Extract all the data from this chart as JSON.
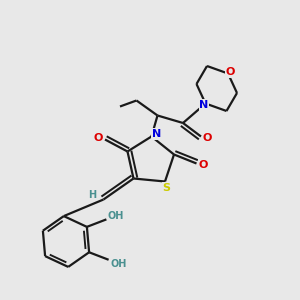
{
  "bg_color": "#e8e8e8",
  "bond_color": "#1a1a1a",
  "S_color": "#cccc00",
  "N_color": "#0000dd",
  "O_color": "#dd0000",
  "H_color": "#4a9090",
  "linewidth": 1.6,
  "figsize": [
    3.0,
    3.0
  ],
  "dpi": 100,
  "xlim": [
    0,
    10
  ],
  "ylim": [
    0,
    10
  ]
}
